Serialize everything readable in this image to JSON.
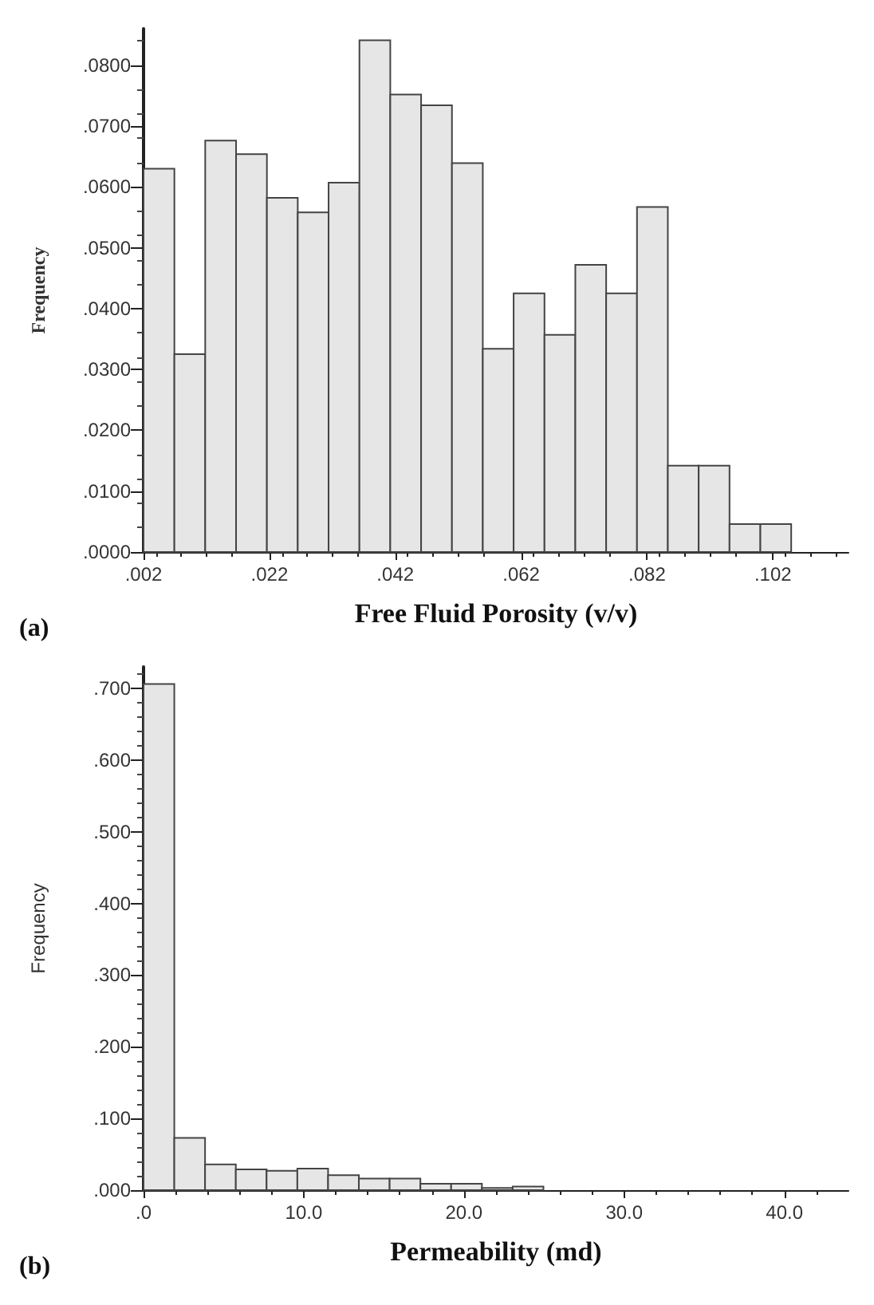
{
  "chart_data": [
    {
      "type": "histogram",
      "xlabel": "Free Fluid Porosity (v/v)",
      "ylabel": "Frequency",
      "annotations": [
        "(a)"
      ],
      "color": "#e6e6e6",
      "grid": false,
      "bins": [
        0.002,
        0.0069,
        0.0118,
        0.0167,
        0.0216,
        0.0265,
        0.0314,
        0.0363,
        0.0412,
        0.0461,
        0.051,
        0.0559,
        0.0608,
        0.0657,
        0.0706,
        0.0755,
        0.0804,
        0.0853,
        0.0902,
        0.0951,
        0.1,
        0.1049
      ],
      "values": [
        0.063,
        0.0325,
        0.0676,
        0.0654,
        0.0582,
        0.0558,
        0.0607,
        0.0841,
        0.0752,
        0.0734,
        0.0639,
        0.0334,
        0.0425,
        0.0357,
        0.0472,
        0.0425,
        0.0567,
        0.0142,
        0.0142,
        0.0046,
        0.0046
      ],
      "xlim": [
        0.002,
        0.114
      ],
      "ylim": [
        0,
        0.086
      ],
      "xticks": [
        {
          "value": 0.002,
          "label": ".002"
        },
        {
          "value": 0.022,
          "label": ".022"
        },
        {
          "value": 0.042,
          "label": ".042"
        },
        {
          "value": 0.062,
          "label": ".062"
        },
        {
          "value": 0.082,
          "label": ".082"
        },
        {
          "value": 0.102,
          "label": ".102"
        }
      ],
      "yticks": [
        {
          "value": 0,
          "label": ".0000"
        },
        {
          "value": 0.01,
          "label": ".0100"
        },
        {
          "value": 0.02,
          "label": ".0200"
        },
        {
          "value": 0.03,
          "label": ".0300"
        },
        {
          "value": 0.04,
          "label": ".0400"
        },
        {
          "value": 0.05,
          "label": ".0500"
        },
        {
          "value": 0.06,
          "label": ".0600"
        },
        {
          "value": 0.07,
          "label": ".0700"
        },
        {
          "value": 0.08,
          "label": ".0800"
        }
      ]
    },
    {
      "type": "histogram",
      "xlabel": "Permeability (md)",
      "ylabel": "Frequency",
      "annotations": [
        "(b)"
      ],
      "color": "#e6e6e6",
      "grid": false,
      "bins": [
        0,
        1.92,
        3.84,
        5.76,
        7.68,
        9.6,
        11.52,
        13.44,
        15.36,
        17.28,
        19.2,
        21.12,
        23.04,
        24.96
      ],
      "values": [
        0.706,
        0.073,
        0.036,
        0.029,
        0.027,
        0.03,
        0.021,
        0.016,
        0.016,
        0.009,
        0.009,
        0.003,
        0.005
      ],
      "xlim": [
        0,
        44
      ],
      "ylim": [
        0,
        0.73
      ],
      "xticks": [
        {
          "value": 0,
          "label": ".0"
        },
        {
          "value": 10,
          "label": "10.0"
        },
        {
          "value": 20,
          "label": "20.0"
        },
        {
          "value": 30,
          "label": "30.0"
        },
        {
          "value": 40,
          "label": "40.0"
        }
      ],
      "yticks": [
        {
          "value": 0,
          "label": ".000"
        },
        {
          "value": 0.1,
          "label": ".100"
        },
        {
          "value": 0.2,
          "label": ".200"
        },
        {
          "value": 0.3,
          "label": ".300"
        },
        {
          "value": 0.4,
          "label": ".400"
        },
        {
          "value": 0.5,
          "label": ".500"
        },
        {
          "value": 0.6,
          "label": ".600"
        },
        {
          "value": 0.7,
          "label": ".700"
        }
      ]
    }
  ]
}
